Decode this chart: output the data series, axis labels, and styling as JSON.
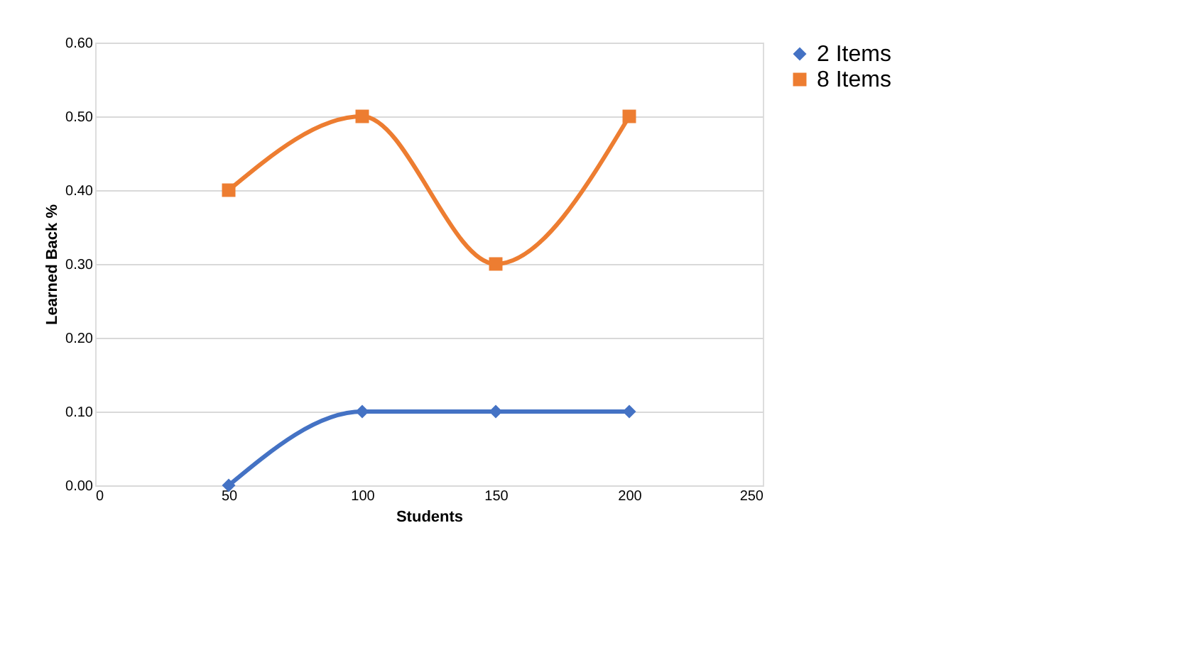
{
  "chart_data": {
    "type": "line",
    "xlabel": "Students",
    "ylabel": "Learned Back %",
    "x": [
      50,
      100,
      150,
      200
    ],
    "series": [
      {
        "name": "2 Items",
        "color": "#4472c4",
        "values": [
          0.0,
          0.1,
          0.1,
          0.1
        ],
        "marker": "diamond"
      },
      {
        "name": "8 Items",
        "color": "#ed7d31",
        "values": [
          0.4,
          0.5,
          0.3,
          0.5
        ],
        "marker": "square"
      }
    ],
    "xlim": [
      0,
      250
    ],
    "xticks": [
      0,
      50,
      100,
      150,
      200,
      250
    ],
    "ylim": [
      0,
      0.6
    ],
    "yticks": [
      {
        "value": 0,
        "label": "0.00"
      },
      {
        "value": 0.1,
        "label": "0.10"
      },
      {
        "value": 0.2,
        "label": "0.20"
      },
      {
        "value": 0.3,
        "label": "0.30"
      },
      {
        "value": 0.4,
        "label": "0.40"
      },
      {
        "value": 0.5,
        "label": "0.50"
      },
      {
        "value": 0.6,
        "label": "0.60"
      }
    ],
    "grid": "y",
    "legend": "right",
    "line_style": "solid"
  }
}
